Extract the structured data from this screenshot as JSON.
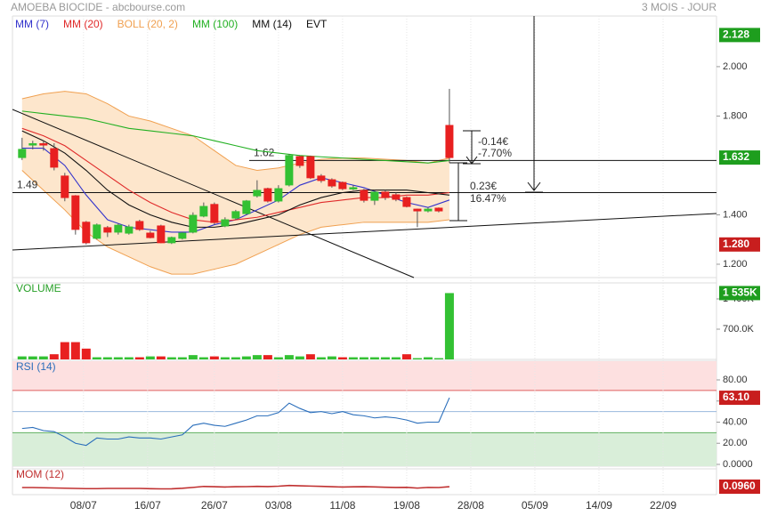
{
  "chart_data": [
    {
      "type": "candlestick",
      "title": "AMOEBA BIOCIDE - abcbourse.com",
      "subtitle": "3 MOIS - JOUR",
      "x": [
        0,
        1,
        2,
        3,
        4,
        5,
        6,
        7,
        8,
        9,
        10,
        11,
        12,
        13,
        14,
        15,
        16,
        17,
        18,
        19,
        20,
        21,
        22,
        23,
        24,
        25,
        26,
        27,
        28,
        29,
        30,
        31,
        32,
        33,
        34,
        35,
        36,
        37,
        38,
        39,
        40
      ],
      "open": [
        1.632,
        1.685,
        1.688,
        1.668,
        1.557,
        1.477,
        1.37,
        1.305,
        1.348,
        1.33,
        1.326,
        1.373,
        1.326,
        1.355,
        1.287,
        1.305,
        1.33,
        1.395,
        1.442,
        1.355,
        1.387,
        1.405,
        1.477,
        1.506,
        1.456,
        1.521,
        1.636,
        1.636,
        1.557,
        1.542,
        1.531,
        1.51,
        1.499,
        1.459,
        1.492,
        1.481,
        1.47,
        1.423,
        1.416,
        1.427,
        1.762
      ],
      "high": [
        1.712,
        1.7,
        1.7,
        1.69,
        1.57,
        1.48,
        1.375,
        1.365,
        1.355,
        1.365,
        1.36,
        1.38,
        1.335,
        1.36,
        1.312,
        1.33,
        1.41,
        1.45,
        1.45,
        1.39,
        1.42,
        1.46,
        1.54,
        1.51,
        1.52,
        1.645,
        1.64,
        1.64,
        1.565,
        1.548,
        1.535,
        1.52,
        1.505,
        1.5,
        1.5,
        1.49,
        1.475,
        1.425,
        1.43,
        1.43,
        1.91
      ],
      "low": [
        1.622,
        1.665,
        1.66,
        1.58,
        1.455,
        1.32,
        1.28,
        1.3,
        1.31,
        1.32,
        1.32,
        1.335,
        1.305,
        1.285,
        1.282,
        1.3,
        1.325,
        1.39,
        1.36,
        1.35,
        1.38,
        1.4,
        1.47,
        1.45,
        1.45,
        1.515,
        1.59,
        1.545,
        1.53,
        1.51,
        1.5,
        1.5,
        1.45,
        1.44,
        1.46,
        1.455,
        1.43,
        1.35,
        1.41,
        1.41,
        1.61
      ],
      "close": [
        1.665,
        1.688,
        1.686,
        1.593,
        1.47,
        1.341,
        1.287,
        1.359,
        1.33,
        1.358,
        1.351,
        1.341,
        1.308,
        1.287,
        1.308,
        1.326,
        1.398,
        1.434,
        1.369,
        1.38,
        1.413,
        1.456,
        1.499,
        1.456,
        1.506,
        1.64,
        1.6,
        1.55,
        1.539,
        1.517,
        1.506,
        1.51,
        1.459,
        1.492,
        1.47,
        1.463,
        1.434,
        1.416,
        1.423,
        1.416,
        1.632
      ],
      "up_color": "#33c133",
      "down_color": "#e82020",
      "series": [
        {
          "name": "MM (7)",
          "color": "#3333cc",
          "x": [
            0,
            2,
            4,
            6,
            8,
            10,
            12,
            14,
            16,
            18,
            20,
            22,
            24,
            26,
            28,
            30,
            32,
            34,
            36,
            38,
            40
          ],
          "values": [
            1.67,
            1.67,
            1.6,
            1.48,
            1.38,
            1.35,
            1.34,
            1.33,
            1.33,
            1.36,
            1.38,
            1.42,
            1.46,
            1.52,
            1.55,
            1.53,
            1.51,
            1.48,
            1.45,
            1.43,
            1.46
          ]
        },
        {
          "name": "MM (20)",
          "color": "#e02a2a",
          "x": [
            0,
            2,
            4,
            6,
            8,
            10,
            12,
            14,
            16,
            18,
            20,
            22,
            24,
            26,
            28,
            30,
            32,
            34,
            36,
            38,
            40
          ],
          "values": [
            1.75,
            1.72,
            1.68,
            1.62,
            1.56,
            1.5,
            1.45,
            1.41,
            1.38,
            1.37,
            1.38,
            1.39,
            1.41,
            1.43,
            1.45,
            1.46,
            1.47,
            1.47,
            1.48,
            1.48,
            1.49
          ]
        },
        {
          "name": "BOLL (20, 2)",
          "color": "#f0a050",
          "fill": "#fde6cc",
          "x": [
            0,
            2,
            4,
            6,
            8,
            10,
            12,
            14,
            16,
            18,
            20,
            22,
            24,
            26,
            28,
            30,
            32,
            34,
            36,
            38,
            40
          ],
          "upper": [
            1.87,
            1.89,
            1.9,
            1.89,
            1.85,
            1.8,
            1.78,
            1.75,
            1.72,
            1.66,
            1.6,
            1.58,
            1.59,
            1.61,
            1.625,
            1.63,
            1.63,
            1.625,
            1.62,
            1.61,
            1.63
          ],
          "lower": [
            1.58,
            1.5,
            1.42,
            1.33,
            1.27,
            1.23,
            1.19,
            1.16,
            1.16,
            1.18,
            1.2,
            1.24,
            1.28,
            1.32,
            1.35,
            1.36,
            1.37,
            1.37,
            1.37,
            1.37,
            1.38
          ]
        },
        {
          "name": "MM (100)",
          "color": "#22b022",
          "x": [
            0,
            2,
            4,
            6,
            8,
            10,
            12,
            14,
            16,
            18,
            20,
            22,
            24,
            26,
            28,
            30,
            32,
            34,
            36,
            38,
            40
          ],
          "values": [
            1.82,
            1.81,
            1.8,
            1.79,
            1.77,
            1.75,
            1.74,
            1.73,
            1.72,
            1.7,
            1.68,
            1.66,
            1.65,
            1.64,
            1.635,
            1.63,
            1.625,
            1.62,
            1.615,
            1.61,
            1.62
          ]
        },
        {
          "name": "MM (14)",
          "color": "#111111",
          "x": [
            0,
            2,
            4,
            6,
            8,
            10,
            12,
            14,
            16,
            18,
            20,
            22,
            24,
            26,
            28,
            30,
            32,
            34,
            36,
            38,
            40
          ],
          "values": [
            1.74,
            1.7,
            1.65,
            1.58,
            1.5,
            1.44,
            1.4,
            1.37,
            1.35,
            1.35,
            1.36,
            1.38,
            1.4,
            1.44,
            1.47,
            1.49,
            1.5,
            1.5,
            1.5,
            1.49,
            1.48
          ]
        }
      ],
      "events_label": "EVT",
      "levels": [
        1.49,
        1.62
      ],
      "annotations": [
        "-0.14€",
        "-7.70%",
        "0.23€",
        "16.47%"
      ],
      "xlim": [
        -0.9,
        65.0
      ],
      "xticks": [
        {
          "value": 5.75,
          "label": "08/07"
        },
        {
          "value": 11.75,
          "label": "16/07"
        },
        {
          "value": 18,
          "label": "26/07"
        },
        {
          "value": 24,
          "label": "03/08"
        },
        {
          "value": 30,
          "label": "11/08"
        },
        {
          "value": 36,
          "label": "19/08"
        },
        {
          "value": 42,
          "label": "28/08"
        },
        {
          "value": 48,
          "label": "05/09"
        },
        {
          "value": 54,
          "label": "14/09"
        },
        {
          "value": 60,
          "label": "22/09"
        }
      ],
      "ylim": [
        1.146,
        2.205
      ],
      "yticks": [
        {
          "value": 1.2,
          "label": "1.200"
        },
        {
          "value": 1.4,
          "label": "1.400"
        },
        {
          "value": 1.8,
          "label": "1.800"
        },
        {
          "value": 2.0,
          "label": "2.000"
        }
      ],
      "badges": [
        {
          "value": 2.128,
          "label": "2.128",
          "color": "#1e9e1e"
        },
        {
          "value": 1.632,
          "label": "1.632",
          "color": "#1e9e1e"
        },
        {
          "value": 1.28,
          "label": "1.280",
          "color": "#c81e1e"
        }
      ]
    },
    {
      "type": "bar",
      "title": "VOLUME",
      "x": [
        0,
        1,
        2,
        3,
        4,
        5,
        6,
        7,
        8,
        9,
        10,
        11,
        12,
        13,
        14,
        15,
        16,
        17,
        18,
        19,
        20,
        21,
        22,
        23,
        24,
        25,
        26,
        27,
        28,
        29,
        30,
        31,
        32,
        33,
        34,
        35,
        36,
        37,
        38,
        39,
        40
      ],
      "values": [
        70000,
        70000,
        70000,
        120000,
        400000,
        400000,
        250000,
        50000,
        50000,
        50000,
        50000,
        50000,
        70000,
        70000,
        50000,
        50000,
        100000,
        50000,
        70000,
        50000,
        50000,
        70000,
        100000,
        100000,
        50000,
        100000,
        70000,
        120000,
        50000,
        70000,
        50000,
        50000,
        50000,
        50000,
        50000,
        50000,
        120000,
        30000,
        50000,
        30000,
        1535000
      ],
      "colors": [
        "#33c133",
        "#33c133",
        "#33c133",
        "#e82020",
        "#e82020",
        "#e82020",
        "#e82020",
        "#33c133",
        "#33c133",
        "#33c133",
        "#33c133",
        "#e82020",
        "#33c133",
        "#e82020",
        "#33c133",
        "#33c133",
        "#33c133",
        "#33c133",
        "#e82020",
        "#33c133",
        "#33c133",
        "#33c133",
        "#33c133",
        "#e82020",
        "#33c133",
        "#33c133",
        "#33c133",
        "#e82020",
        "#33c133",
        "#33c133",
        "#e82020",
        "#33c133",
        "#33c133",
        "#33c133",
        "#33c133",
        "#33c133",
        "#e82020",
        "#33c133",
        "#33c133",
        "#33c133",
        "#33c133"
      ],
      "ylim": [
        0,
        1770000
      ],
      "yticks": [
        {
          "value": 700000,
          "label": "700.0K"
        },
        {
          "value": 1400000,
          "label": "1 400K"
        }
      ],
      "badges": [
        {
          "value": 1535000,
          "label": "1 535K",
          "color": "#1e9e1e"
        }
      ]
    },
    {
      "type": "line",
      "title": "RSI (14)",
      "color": "#2a6ebb",
      "x": [
        0,
        1,
        2,
        3,
        4,
        5,
        6,
        7,
        8,
        9,
        10,
        11,
        12,
        13,
        14,
        15,
        16,
        17,
        18,
        19,
        20,
        21,
        22,
        23,
        24,
        25,
        26,
        27,
        28,
        29,
        30,
        31,
        32,
        33,
        34,
        35,
        36,
        37,
        38,
        39,
        40
      ],
      "values": [
        34,
        35,
        32,
        31,
        26,
        20,
        18,
        25,
        24,
        24,
        26,
        25,
        25,
        24,
        26,
        28,
        37,
        39,
        37,
        36,
        39,
        42,
        46,
        46,
        49,
        58,
        53,
        49,
        50,
        48,
        50,
        47,
        46,
        44,
        45,
        44,
        42,
        39,
        40,
        40,
        63.1
      ],
      "overbought": 70,
      "oversold": 30,
      "middle": 50,
      "ylim": [
        -1.7,
        97.7
      ],
      "yticks": [
        {
          "value": 0,
          "label": "0.0000"
        },
        {
          "value": 20,
          "label": "20.00"
        },
        {
          "value": 40,
          "label": "40.00"
        },
        {
          "value": 60,
          "label": "60.00"
        },
        {
          "value": 80,
          "label": "80.00"
        }
      ],
      "badges": [
        {
          "value": 63.1,
          "label": "63.10",
          "color": "#c81e1e"
        }
      ]
    },
    {
      "type": "line",
      "title": "MOM (12)",
      "color": "#c03030",
      "x": [
        0,
        1,
        2,
        3,
        4,
        5,
        6,
        7,
        8,
        9,
        10,
        11,
        12,
        13,
        14,
        15,
        16,
        17,
        18,
        19,
        20,
        21,
        22,
        23,
        24,
        25,
        26,
        27,
        28,
        29,
        30,
        31,
        32,
        33,
        34,
        35,
        36,
        37,
        38,
        39,
        40
      ],
      "values": [
        -0.1,
        -0.1,
        -0.15,
        -0.2,
        -0.25,
        -0.3,
        -0.35,
        -0.35,
        -0.3,
        -0.3,
        -0.3,
        -0.3,
        -0.357,
        -0.401,
        -0.378,
        -0.267,
        -0.072,
        0.147,
        0.082,
        0.021,
        0.083,
        0.098,
        0.158,
        0.115,
        0.198,
        0.353,
        0.292,
        0.224,
        0.17,
        0.083,
        0.008,
        0.054,
        0.09,
        0.036,
        -0.036,
        -0.087,
        -0.072,
        -0.224,
        -0.077,
        -0.101,
        0.096
      ],
      "ylim": [
        -1.7,
        4.1
      ],
      "badges": [
        {
          "value": 0.096,
          "label": "0.0960",
          "color": "#c81e1e"
        }
      ]
    }
  ]
}
